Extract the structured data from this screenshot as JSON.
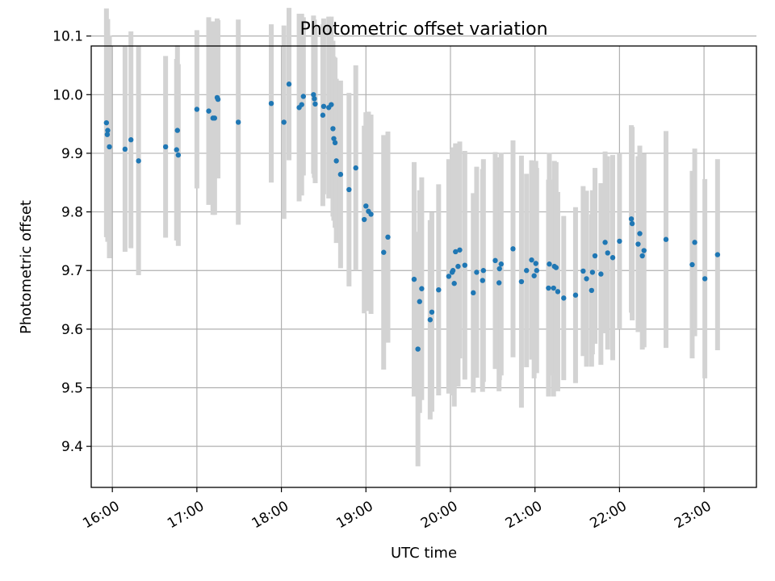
{
  "chart_data": {
    "type": "scatter",
    "title": "Photometric offset variation",
    "xlabel": "UTC time",
    "ylabel": "Photometric offset",
    "x_unit": "hours UTC",
    "xlim": [
      15.75,
      23.62
    ],
    "ylim": [
      9.33,
      10.083
    ],
    "xticks": [
      16,
      17,
      18,
      19,
      20,
      21,
      22,
      23
    ],
    "xtick_labels": [
      "16:00",
      "17:00",
      "18:00",
      "19:00",
      "20:00",
      "21:00",
      "22:00",
      "23:00"
    ],
    "yticks": [
      9.4,
      9.5,
      9.6,
      9.7,
      9.8,
      9.9,
      10.0,
      10.1
    ],
    "ytick_labels": [
      "9.4",
      "9.5",
      "9.6",
      "9.7",
      "9.8",
      "9.9",
      "10.0",
      "10.1"
    ],
    "grid": true,
    "colors": {
      "marker": "#1f77b4",
      "errorbar": "#d3d3d3",
      "grid": "#b0b0b0"
    },
    "points": [
      [
        15.93,
        9.952,
        0.195
      ],
      [
        15.94,
        9.932,
        0.17
      ],
      [
        15.945,
        9.939,
        0.19
      ],
      [
        15.965,
        9.911,
        0.19
      ],
      [
        16.15,
        9.907,
        0.175
      ],
      [
        16.22,
        9.923,
        0.185
      ],
      [
        16.31,
        9.887,
        0.195
      ],
      [
        16.63,
        9.911,
        0.155
      ],
      [
        16.76,
        9.906,
        0.155
      ],
      [
        16.77,
        9.939,
        0.145
      ],
      [
        16.78,
        9.897,
        0.155
      ],
      [
        17.0,
        9.975,
        0.135
      ],
      [
        17.14,
        9.972,
        0.16
      ],
      [
        17.19,
        9.96,
        0.165
      ],
      [
        17.21,
        9.96,
        0.165
      ],
      [
        17.24,
        9.995,
        0.135
      ],
      [
        17.25,
        9.992,
        0.135
      ],
      [
        17.49,
        9.953,
        0.175
      ],
      [
        17.88,
        9.985,
        0.135
      ],
      [
        18.03,
        9.953,
        0.165
      ],
      [
        18.09,
        10.018,
        0.13
      ],
      [
        18.21,
        9.978,
        0.16
      ],
      [
        18.24,
        9.983,
        0.155
      ],
      [
        18.26,
        9.997,
        0.135
      ],
      [
        18.38,
        10.0,
        0.135
      ],
      [
        18.39,
        9.993,
        0.135
      ],
      [
        18.4,
        9.984,
        0.135
      ],
      [
        18.49,
        9.965,
        0.155
      ],
      [
        18.5,
        9.98,
        0.15
      ],
      [
        18.56,
        9.978,
        0.155
      ],
      [
        18.59,
        9.983,
        0.15
      ],
      [
        18.61,
        9.942,
        0.15
      ],
      [
        18.62,
        9.925,
        0.14
      ],
      [
        18.635,
        9.918,
        0.145
      ],
      [
        18.65,
        9.887,
        0.14
      ],
      [
        18.7,
        9.864,
        0.16
      ],
      [
        18.8,
        9.838,
        0.165
      ],
      [
        18.88,
        9.875,
        0.175
      ],
      [
        18.98,
        9.787,
        0.16
      ],
      [
        19.0,
        9.81,
        0.16
      ],
      [
        19.03,
        9.801,
        0.17
      ],
      [
        19.06,
        9.796,
        0.17
      ],
      [
        19.21,
        9.731,
        0.2
      ],
      [
        19.26,
        9.757,
        0.18
      ],
      [
        19.57,
        9.685,
        0.2
      ],
      [
        19.615,
        9.566,
        0.2
      ],
      [
        19.635,
        9.647,
        0.19
      ],
      [
        19.66,
        9.669,
        0.19
      ],
      [
        19.76,
        9.616,
        0.17
      ],
      [
        19.78,
        9.629,
        0.17
      ],
      [
        19.86,
        9.667,
        0.18
      ],
      [
        19.98,
        9.69,
        0.2
      ],
      [
        20.02,
        9.697,
        0.21
      ],
      [
        20.03,
        9.7,
        0.21
      ],
      [
        20.045,
        9.678,
        0.21
      ],
      [
        20.06,
        9.732,
        0.185
      ],
      [
        20.09,
        9.707,
        0.205
      ],
      [
        20.11,
        9.735,
        0.185
      ],
      [
        20.17,
        9.709,
        0.195
      ],
      [
        20.27,
        9.662,
        0.17
      ],
      [
        20.31,
        9.697,
        0.18
      ],
      [
        20.38,
        9.683,
        0.19
      ],
      [
        20.39,
        9.7,
        0.19
      ],
      [
        20.53,
        9.717,
        0.185
      ],
      [
        20.575,
        9.679,
        0.185
      ],
      [
        20.58,
        9.703,
        0.19
      ],
      [
        20.6,
        9.711,
        0.19
      ],
      [
        20.74,
        9.737,
        0.185
      ],
      [
        20.84,
        9.681,
        0.215
      ],
      [
        20.9,
        9.7,
        0.165
      ],
      [
        20.96,
        9.718,
        0.17
      ],
      [
        20.99,
        9.691,
        0.175
      ],
      [
        21.01,
        9.712,
        0.175
      ],
      [
        21.02,
        9.7,
        0.175
      ],
      [
        21.16,
        9.67,
        0.185
      ],
      [
        21.17,
        9.711,
        0.19
      ],
      [
        21.22,
        9.67,
        0.185
      ],
      [
        21.23,
        9.707,
        0.18
      ],
      [
        21.25,
        9.705,
        0.18
      ],
      [
        21.27,
        9.664,
        0.17
      ],
      [
        21.34,
        9.653,
        0.14
      ],
      [
        21.48,
        9.658,
        0.15
      ],
      [
        21.57,
        9.699,
        0.145
      ],
      [
        21.61,
        9.686,
        0.15
      ],
      [
        21.67,
        9.666,
        0.13
      ],
      [
        21.68,
        9.697,
        0.14
      ],
      [
        21.71,
        9.725,
        0.15
      ],
      [
        21.78,
        9.694,
        0.155
      ],
      [
        21.83,
        9.748,
        0.155
      ],
      [
        21.86,
        9.73,
        0.165
      ],
      [
        21.92,
        9.722,
        0.175
      ],
      [
        22.0,
        9.75,
        0.15
      ],
      [
        22.14,
        9.788,
        0.16
      ],
      [
        22.15,
        9.78,
        0.165
      ],
      [
        22.22,
        9.745,
        0.15
      ],
      [
        22.24,
        9.763,
        0.15
      ],
      [
        22.27,
        9.725,
        0.16
      ],
      [
        22.29,
        9.734,
        0.165
      ],
      [
        22.55,
        9.753,
        0.185
      ],
      [
        22.86,
        9.71,
        0.16
      ],
      [
        22.89,
        9.748,
        0.16
      ],
      [
        23.01,
        9.686,
        0.17
      ],
      [
        23.16,
        9.727,
        0.163
      ]
    ]
  }
}
